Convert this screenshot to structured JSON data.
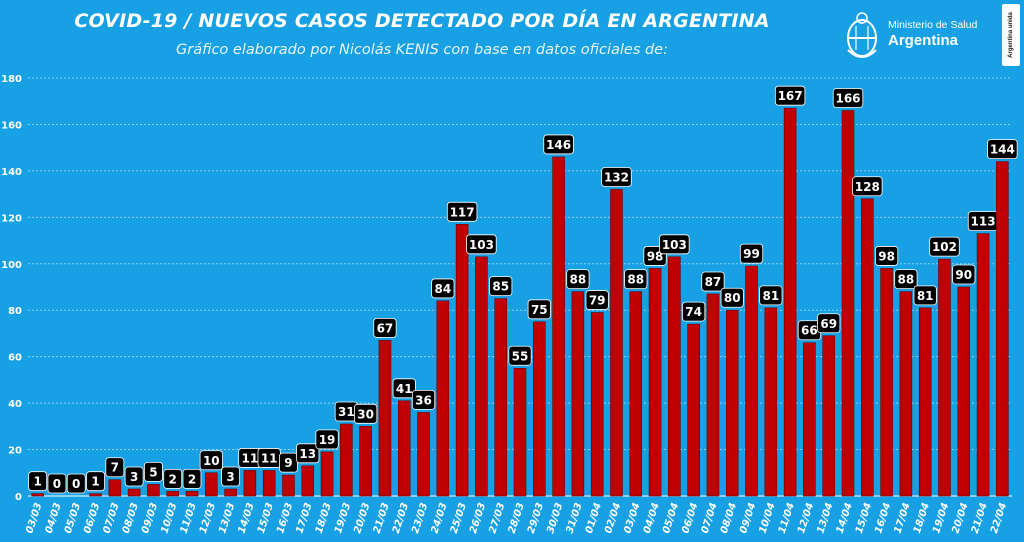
{
  "header": {
    "title": "COVID-19  /  NUEVOS CASOS DETECTADO POR DÍA EN ARGENTINA",
    "subtitle": "Gráfico elaborado por Nicolás KENIS con base en datos oficiales de:",
    "logo_line1": "Ministerio de Salud",
    "logo_line2": "Argentina",
    "badge_text": "Argentina unida"
  },
  "colors": {
    "background": "#17a0e3",
    "bar": "#c00000",
    "bar_edge": "#6b0000",
    "label_bg": "#000000",
    "label_text": "#ffffff",
    "grid": "#8fd0f2",
    "text": "#ffffff"
  },
  "chart_data": {
    "type": "bar",
    "title": "COVID-19  /  NUEVOS CASOS DETECTADO POR DÍA EN ARGENTINA",
    "subtitle": "Gráfico elaborado por Nicolás KENIS con base en datos oficiales de:",
    "xlabel": "",
    "ylabel": "",
    "ylim": [
      0,
      180
    ],
    "yticks": [
      0,
      20,
      40,
      60,
      80,
      100,
      120,
      140,
      160,
      180
    ],
    "grid": true,
    "legend": "none",
    "categories": [
      "03/03",
      "04/03",
      "05/03",
      "06/03",
      "07/03",
      "08/03",
      "09/03",
      "10/03",
      "11/03",
      "12/03",
      "13/03",
      "14/03",
      "15/03",
      "16/03",
      "17/03",
      "18/03",
      "19/03",
      "20/03",
      "21/03",
      "22/03",
      "23/03",
      "24/03",
      "25/03",
      "26/03",
      "27/03",
      "28/03",
      "29/03",
      "30/03",
      "31/03",
      "01/04",
      "02/04",
      "03/04",
      "04/04",
      "05/04",
      "06/04",
      "07/04",
      "08/04",
      "09/04",
      "10/04",
      "11/04",
      "12/04",
      "13/04",
      "14/04",
      "15/04",
      "16/04",
      "17/04",
      "18/04",
      "19/04",
      "20/04",
      "21/04",
      "22/04"
    ],
    "values": [
      1,
      0,
      0,
      1,
      7,
      3,
      5,
      2,
      2,
      10,
      3,
      11,
      11,
      9,
      13,
      19,
      31,
      30,
      67,
      41,
      36,
      84,
      117,
      103,
      85,
      55,
      75,
      146,
      88,
      79,
      132,
      88,
      98,
      103,
      74,
      87,
      80,
      99,
      81,
      167,
      66,
      69,
      166,
      128,
      98,
      88,
      81,
      102,
      90,
      113,
      144
    ]
  }
}
